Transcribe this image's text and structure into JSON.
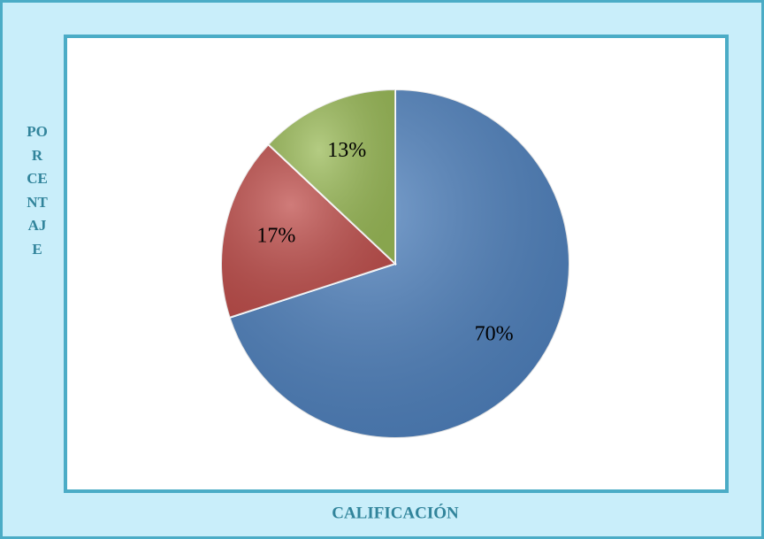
{
  "chart_data": {
    "type": "pie",
    "values": [
      70,
      17,
      13
    ],
    "value_labels": [
      "70%",
      "17%",
      "13%"
    ],
    "colors": [
      "#4f81bd",
      "#c0504d",
      "#9bbb59"
    ],
    "xlabel": "CALIFICACIÓN",
    "ylabel": "PORCENTAJE"
  }
}
